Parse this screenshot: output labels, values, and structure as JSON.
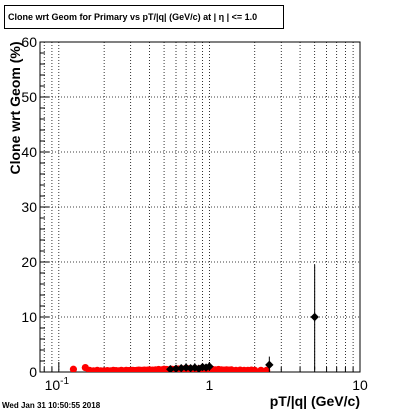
{
  "chart_data": {
    "type": "scatter",
    "title": "Clone wrt Geom for Primary vs pT/|q| (GeV/c) at |  η | <= 1.0",
    "xlabel": "pT/|q| (GeV/c)",
    "ylabel": "Clone wrt Geom (%)",
    "xscale": "log",
    "xlim": [
      0.075,
      10
    ],
    "ylim": [
      0,
      60
    ],
    "grid": true,
    "x_tick_labels": [
      "10^-1",
      "1",
      "10"
    ],
    "y_tick_labels": [
      "0",
      "10",
      "20",
      "30",
      "40",
      "50",
      "60"
    ],
    "marker_colors": {
      "red_series": "#ff0000",
      "black_series": "#000000"
    },
    "series": [
      {
        "marker": "circle",
        "color": "#ff0000",
        "x": [
          0.125,
          0.15,
          0.16,
          0.17,
          0.18,
          0.19,
          0.2,
          0.21,
          0.22,
          0.23,
          0.24,
          0.25,
          0.26,
          0.27,
          0.28,
          0.29,
          0.3,
          0.31,
          0.32,
          0.33,
          0.34,
          0.35,
          0.36,
          0.37,
          0.38,
          0.39,
          0.4,
          0.42,
          0.44,
          0.46,
          0.48,
          0.5,
          0.52,
          0.54,
          0.56,
          0.58,
          0.6,
          0.62,
          0.64,
          0.66,
          0.68,
          0.7,
          0.72,
          0.74,
          0.76,
          0.78,
          0.8,
          0.82,
          0.84,
          0.86,
          0.88,
          0.9,
          0.92,
          0.94,
          0.96,
          0.98,
          1.0,
          1.05,
          1.1,
          1.15,
          1.2,
          1.25,
          1.3,
          1.35,
          1.4,
          1.5,
          1.6,
          1.7,
          1.8,
          1.9,
          2.0,
          2.2,
          2.4
        ],
        "y": [
          0.5,
          0.8,
          0.3,
          0.2,
          0.3,
          0.2,
          0.2,
          0.25,
          0.2,
          0.3,
          0.25,
          0.2,
          0.3,
          0.2,
          0.3,
          0.25,
          0.3,
          0.3,
          0.25,
          0.3,
          0.35,
          0.3,
          0.3,
          0.35,
          0.3,
          0.35,
          0.4,
          0.35,
          0.4,
          0.45,
          0.4,
          0.5,
          0.45,
          0.4,
          0.5,
          0.45,
          0.5,
          0.55,
          0.5,
          0.5,
          0.55,
          0.5,
          0.6,
          0.5,
          0.55,
          0.5,
          0.6,
          0.55,
          0.5,
          0.6,
          0.5,
          0.55,
          0.6,
          0.5,
          0.55,
          0.5,
          0.5,
          0.45,
          0.4,
          0.45,
          0.4,
          0.35,
          0.4,
          0.35,
          0.4,
          0.3,
          0.35,
          0.3,
          0.3,
          0.35,
          0.3,
          0.3,
          0.3
        ]
      },
      {
        "marker": "diamond",
        "color": "#000000",
        "x": [
          0.55,
          0.6,
          0.65,
          0.7,
          0.75,
          0.8,
          0.85,
          0.9,
          0.95,
          1.0,
          2.5,
          5.0
        ],
        "y": [
          0.5,
          0.6,
          0.7,
          0.8,
          0.7,
          0.8,
          0.6,
          0.9,
          0.8,
          1.0,
          1.3,
          10
        ],
        "yerr": [
          0.5,
          0.5,
          0.5,
          0.6,
          0.5,
          0.6,
          0.5,
          0.6,
          0.6,
          0.8,
          1.5,
          9.5
        ]
      }
    ]
  },
  "footer": "Wed Jan 31 10:50:55 2018"
}
